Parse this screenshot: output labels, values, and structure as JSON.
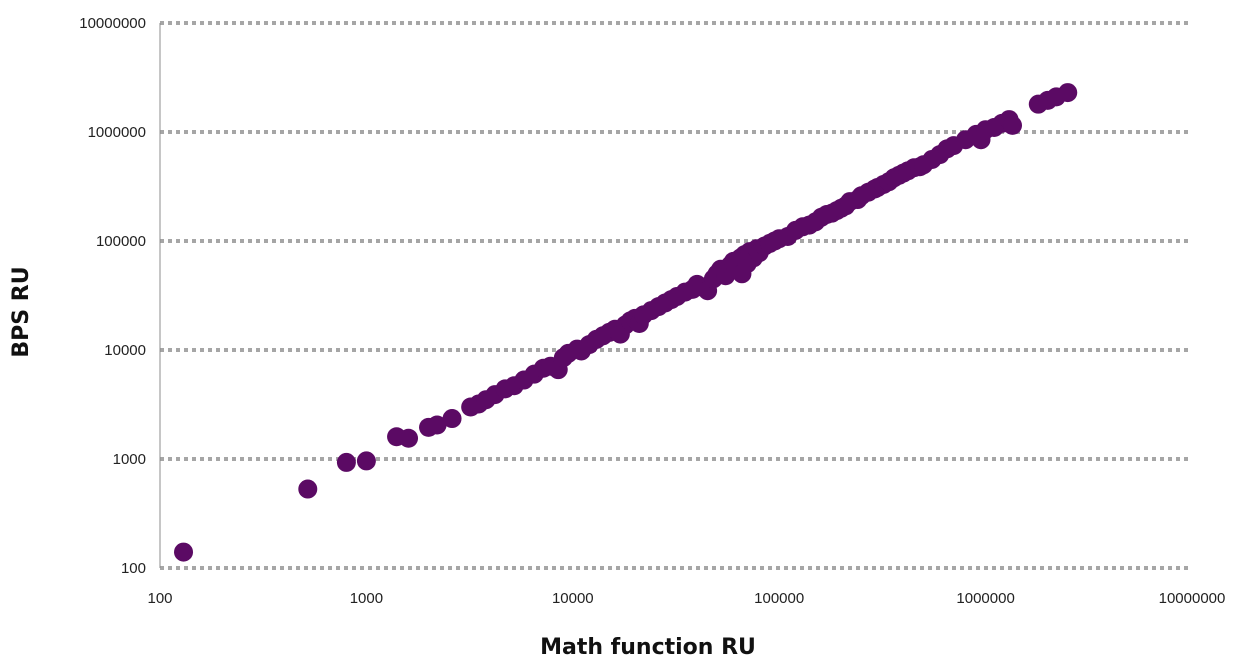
{
  "chart_data": {
    "type": "scatter",
    "xlabel": "Math function RU",
    "ylabel": "BPS RU",
    "xscale": "log",
    "yscale": "log",
    "xlim": [
      100,
      10000000
    ],
    "ylim": [
      100,
      10000000
    ],
    "x_ticks": [
      "100",
      "1000",
      "10000",
      "100000",
      "1000000",
      "10000000"
    ],
    "y_ticks": [
      "100",
      "1000",
      "10000",
      "100000",
      "1000000",
      "10000000"
    ],
    "grid": "horizontal dotted",
    "legend": "none",
    "marker_color": "#5b0a64",
    "grid_color": "#a6a6a6",
    "series": [
      {
        "points": [
          [
            130,
            140
          ],
          [
            520,
            530
          ],
          [
            800,
            930
          ],
          [
            1000,
            960
          ],
          [
            1400,
            1600
          ],
          [
            1600,
            1550
          ],
          [
            2000,
            1950
          ],
          [
            2200,
            2050
          ],
          [
            2600,
            2350
          ],
          [
            3200,
            3000
          ],
          [
            3500,
            3200
          ],
          [
            3800,
            3500
          ],
          [
            4200,
            3900
          ],
          [
            4700,
            4400
          ],
          [
            5200,
            4700
          ],
          [
            5800,
            5300
          ],
          [
            6500,
            6000
          ],
          [
            7200,
            6800
          ],
          [
            7800,
            7100
          ],
          [
            8500,
            6600
          ],
          [
            9000,
            8500
          ],
          [
            9500,
            9300
          ],
          [
            10500,
            10200
          ],
          [
            11000,
            9800
          ],
          [
            12000,
            11200
          ],
          [
            13000,
            12500
          ],
          [
            14000,
            13500
          ],
          [
            15000,
            14500
          ],
          [
            16000,
            15500
          ],
          [
            17000,
            14000
          ],
          [
            18000,
            17000
          ],
          [
            19000,
            18500
          ],
          [
            20000,
            19500
          ],
          [
            21000,
            17500
          ],
          [
            22000,
            21000
          ],
          [
            24000,
            23000
          ],
          [
            26000,
            25000
          ],
          [
            28000,
            27000
          ],
          [
            30000,
            29000
          ],
          [
            32000,
            31000
          ],
          [
            35000,
            34000
          ],
          [
            38000,
            36000
          ],
          [
            40000,
            40000
          ],
          [
            42000,
            38000
          ],
          [
            45000,
            35000
          ],
          [
            48000,
            45000
          ],
          [
            50000,
            50000
          ],
          [
            52000,
            55000
          ],
          [
            55000,
            48000
          ],
          [
            58000,
            60000
          ],
          [
            60000,
            65000
          ],
          [
            62000,
            55000
          ],
          [
            65000,
            70000
          ],
          [
            66000,
            50000
          ],
          [
            68000,
            75000
          ],
          [
            70000,
            62000
          ],
          [
            72000,
            80000
          ],
          [
            75000,
            70000
          ],
          [
            78000,
            85000
          ],
          [
            80000,
            78000
          ],
          [
            85000,
            90000
          ],
          [
            90000,
            95000
          ],
          [
            95000,
            100000
          ],
          [
            100000,
            105000
          ],
          [
            110000,
            110000
          ],
          [
            120000,
            125000
          ],
          [
            130000,
            135000
          ],
          [
            140000,
            140000
          ],
          [
            150000,
            150000
          ],
          [
            160000,
            165000
          ],
          [
            170000,
            175000
          ],
          [
            180000,
            180000
          ],
          [
            190000,
            190000
          ],
          [
            200000,
            200000
          ],
          [
            210000,
            210000
          ],
          [
            220000,
            230000
          ],
          [
            240000,
            240000
          ],
          [
            250000,
            260000
          ],
          [
            270000,
            280000
          ],
          [
            290000,
            300000
          ],
          [
            300000,
            310000
          ],
          [
            320000,
            330000
          ],
          [
            340000,
            350000
          ],
          [
            360000,
            380000
          ],
          [
            380000,
            400000
          ],
          [
            400000,
            420000
          ],
          [
            420000,
            440000
          ],
          [
            450000,
            470000
          ],
          [
            480000,
            480000
          ],
          [
            500000,
            500000
          ],
          [
            550000,
            560000
          ],
          [
            600000,
            620000
          ],
          [
            650000,
            700000
          ],
          [
            700000,
            750000
          ],
          [
            800000,
            850000
          ],
          [
            900000,
            950000
          ],
          [
            950000,
            850000
          ],
          [
            1000000,
            1050000
          ],
          [
            1100000,
            1100000
          ],
          [
            1200000,
            1200000
          ],
          [
            1300000,
            1300000
          ],
          [
            1350000,
            1150000
          ],
          [
            1800000,
            1800000
          ],
          [
            2000000,
            1950000
          ],
          [
            2200000,
            2100000
          ],
          [
            2500000,
            2300000
          ]
        ]
      }
    ]
  }
}
